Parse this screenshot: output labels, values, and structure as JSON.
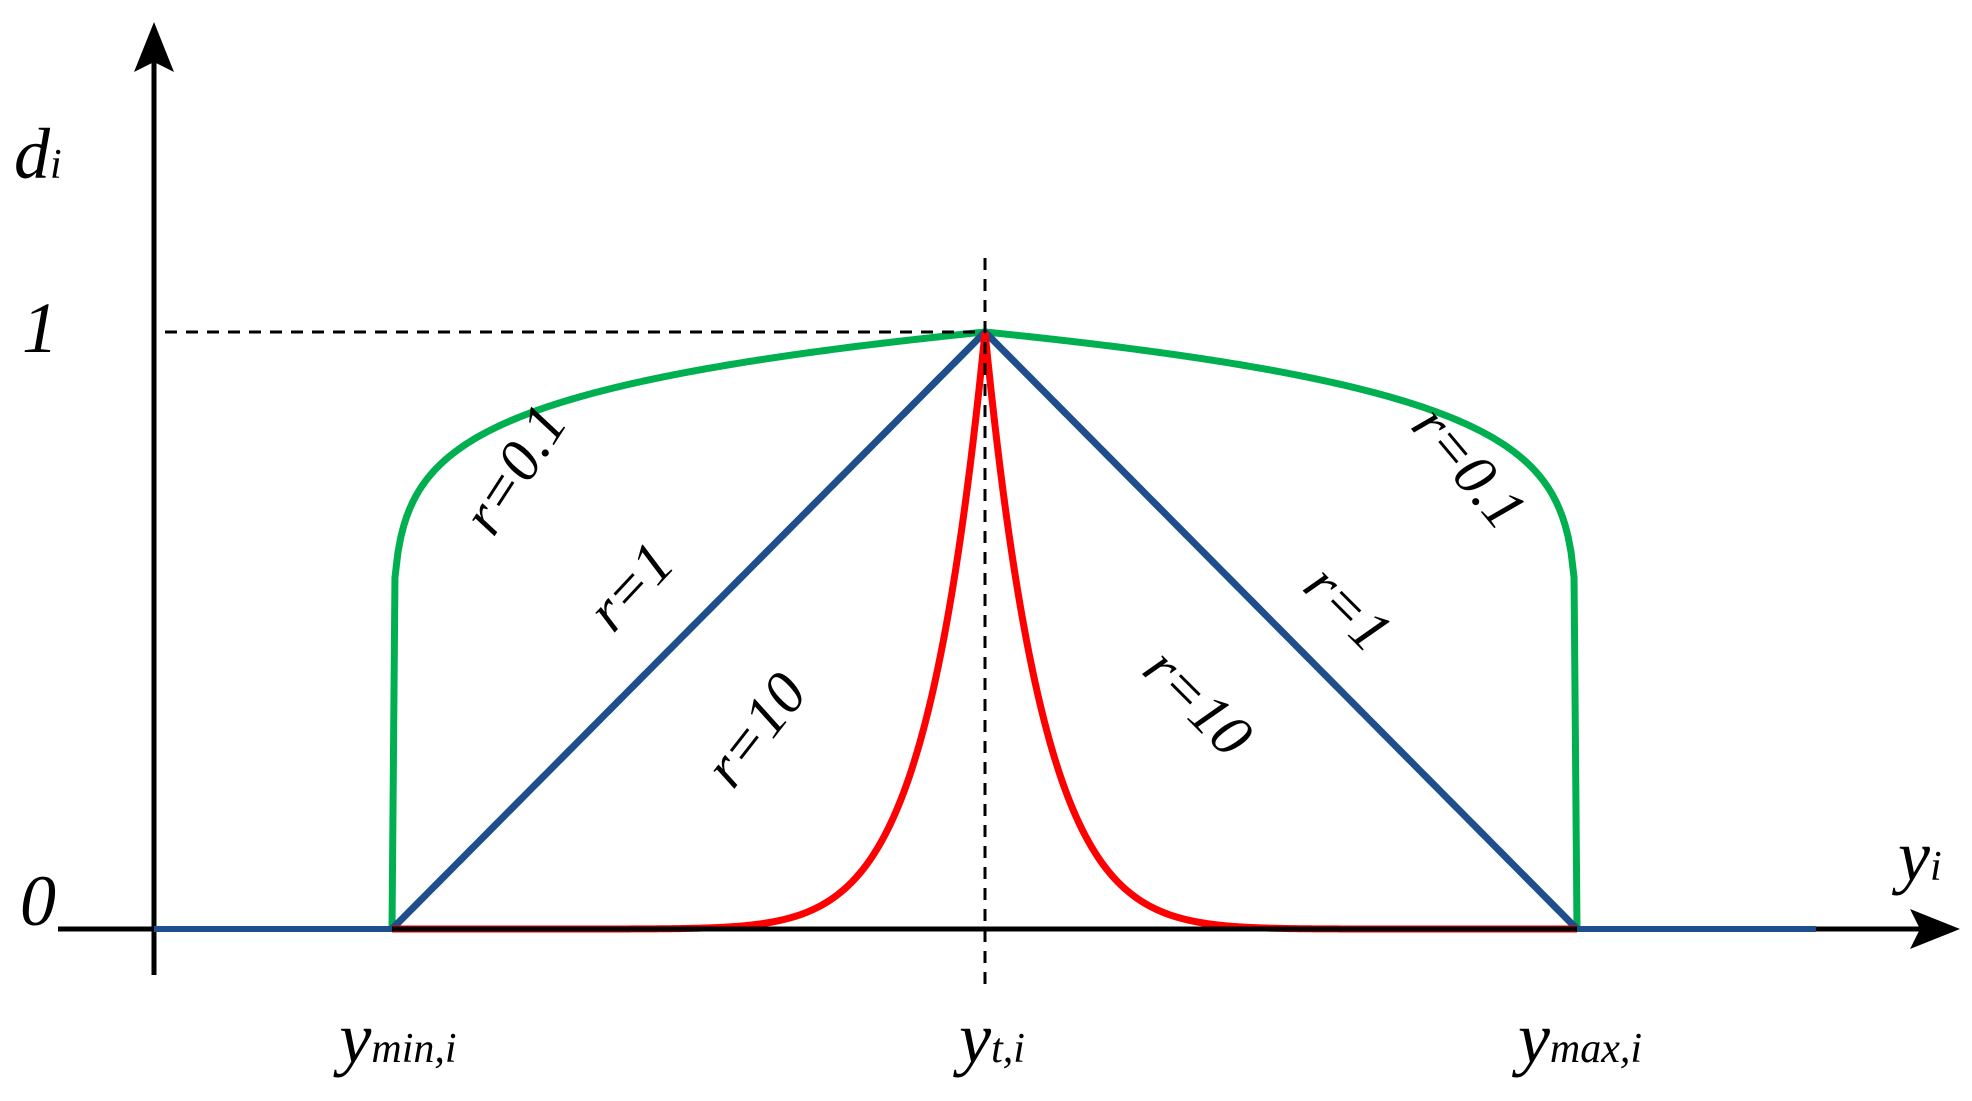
{
  "axes": {
    "y_label": {
      "base": "d",
      "sub": "i"
    },
    "x_label": {
      "base": "y",
      "sub": "i"
    },
    "y_one": "1",
    "y_zero": "0",
    "x_min": {
      "base": "y",
      "sub": "min,i"
    },
    "x_target": {
      "base": "y",
      "sub": "t,i"
    },
    "x_max": {
      "base": "y",
      "sub": "max,i"
    }
  },
  "curves": [
    {
      "label": "r=0.1",
      "r": 0.1,
      "color": "#00b050"
    },
    {
      "label": "r=1",
      "r": 1,
      "color": "#1f4e8c"
    },
    {
      "label": "r=10",
      "r": 10,
      "color": "#ff0000"
    }
  ]
}
